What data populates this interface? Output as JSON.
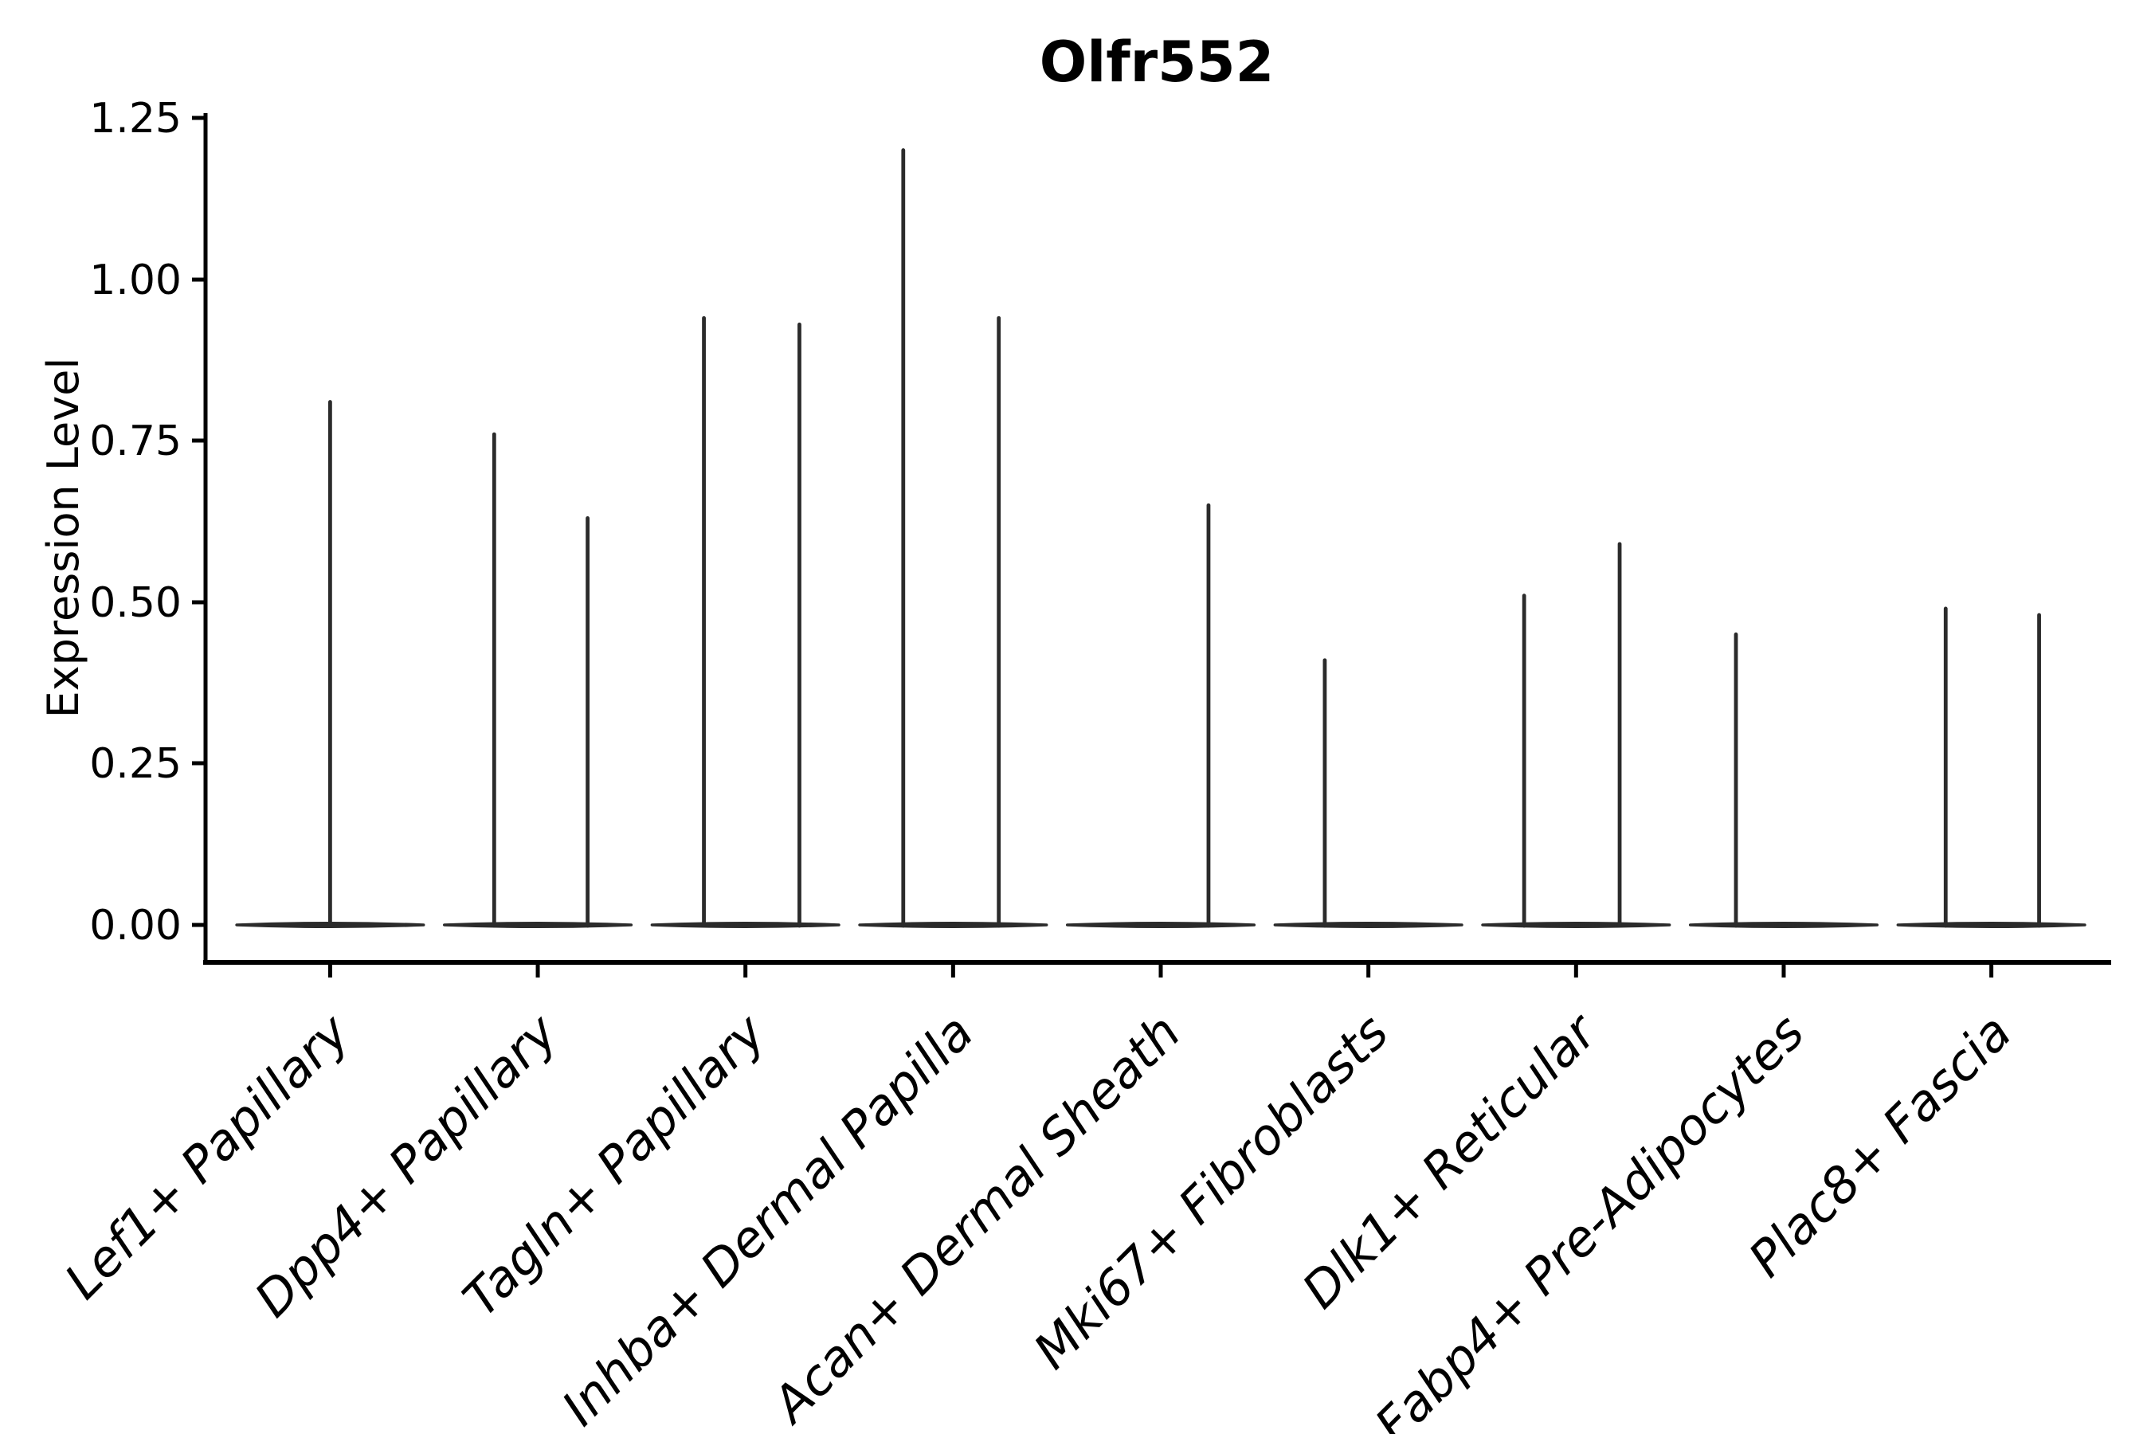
{
  "chart_data": {
    "type": "violin",
    "title": "Olfr552",
    "ylabel": "Expression Level",
    "xlabel": "",
    "ylim": [
      0,
      1.25
    ],
    "yticks": [
      0.0,
      0.25,
      0.5,
      0.75,
      1.0,
      1.25
    ],
    "ytick_labels": [
      "0.00",
      "0.25",
      "0.50",
      "0.75",
      "1.00",
      "1.25"
    ],
    "grid": false,
    "legend": "none",
    "violin_color": "#2b2b2b",
    "axis_color": "#000000",
    "background_color": "#ffffff",
    "categories": [
      {
        "label": "Lef1+ Papillary",
        "spikes": [
          {
            "offset": 0.0,
            "value": 0.81
          }
        ]
      },
      {
        "label": "Dpp4+ Papillary",
        "spikes": [
          {
            "offset": -0.21,
            "value": 0.76
          },
          {
            "offset": 0.24,
            "value": 0.63
          }
        ]
      },
      {
        "label": "Tagln+ Papillary",
        "spikes": [
          {
            "offset": -0.2,
            "value": 0.94
          },
          {
            "offset": 0.26,
            "value": 0.93
          }
        ]
      },
      {
        "label": "Inhba+ Dermal Papilla",
        "spikes": [
          {
            "offset": -0.24,
            "value": 1.2
          },
          {
            "offset": 0.22,
            "value": 0.94
          }
        ]
      },
      {
        "label": "Acan+ Dermal Sheath",
        "spikes": [
          {
            "offset": 0.23,
            "value": 0.65
          }
        ]
      },
      {
        "label": "Mki67+ Fibroblasts",
        "spikes": [
          {
            "offset": -0.21,
            "value": 0.41
          }
        ]
      },
      {
        "label": "Dlk1+ Reticular",
        "spikes": [
          {
            "offset": -0.25,
            "value": 0.51
          },
          {
            "offset": 0.21,
            "value": 0.59
          }
        ]
      },
      {
        "label": "Fabp4+ Pre-Adipocytes",
        "spikes": [
          {
            "offset": -0.23,
            "value": 0.45
          }
        ]
      },
      {
        "label": "Plac8+ Fascia",
        "spikes": [
          {
            "offset": -0.22,
            "value": 0.49
          },
          {
            "offset": 0.23,
            "value": 0.48
          }
        ]
      }
    ]
  }
}
